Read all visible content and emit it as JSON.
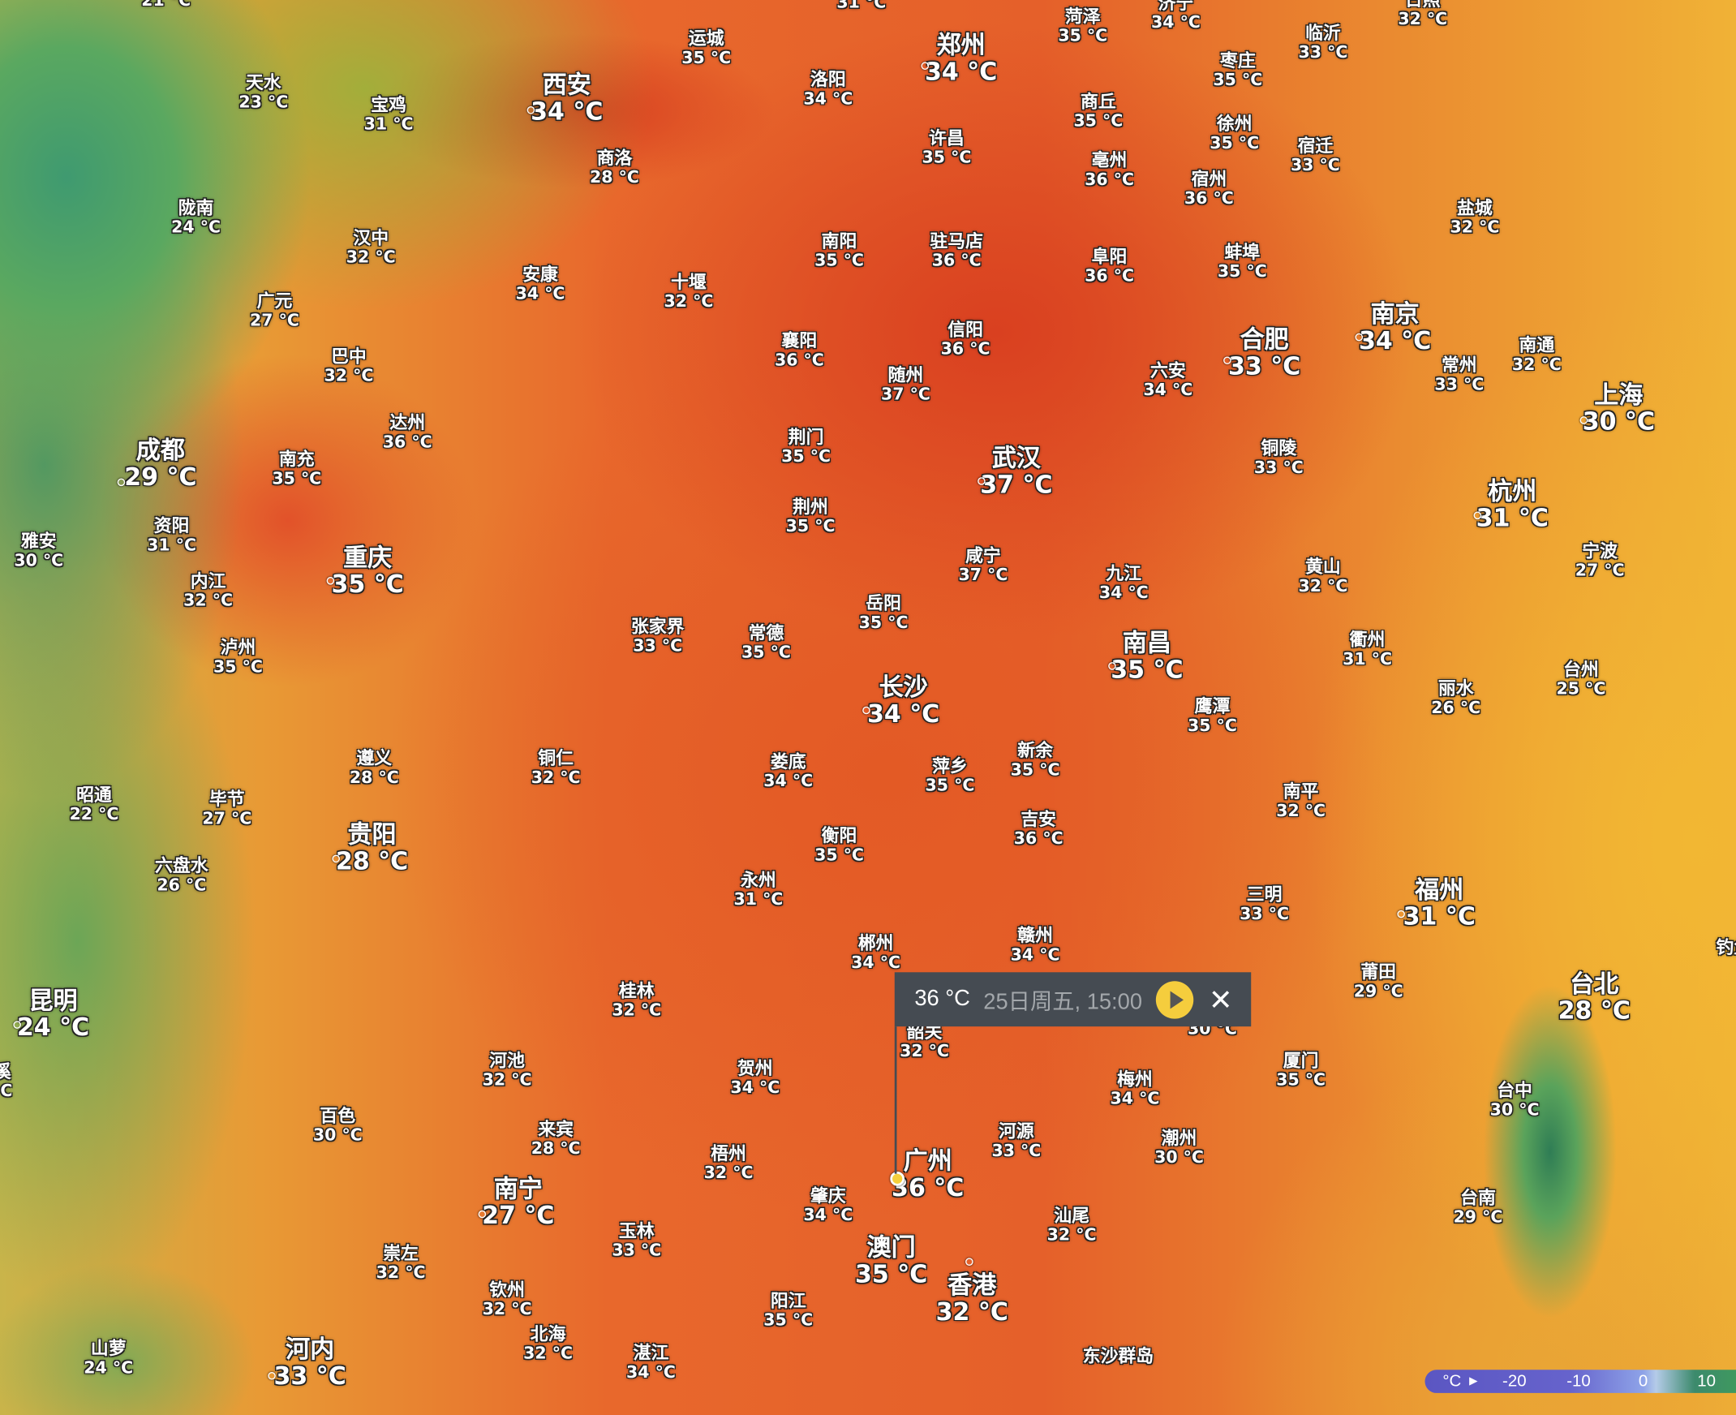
{
  "map": {
    "layer": "temperature",
    "unit": "°C"
  },
  "cities": [
    {
      "name": "",
      "temp": "21 °C"
    },
    {
      "name": "",
      "temp": "31 °C"
    },
    {
      "name": "天水",
      "temp": "23 °C"
    },
    {
      "name": "宝鸡",
      "temp": "31 °C"
    },
    {
      "name": "西安",
      "temp": "34 °C"
    },
    {
      "name": "运城",
      "temp": "35 °C"
    },
    {
      "name": "商洛",
      "temp": "28 °C"
    },
    {
      "name": "洛阳",
      "temp": "34 °C"
    },
    {
      "name": "郑州",
      "temp": "34 °C"
    },
    {
      "name": "菏泽",
      "temp": "35 °C"
    },
    {
      "name": "济宁",
      "temp": "34 °C"
    },
    {
      "name": "临沂",
      "temp": "33 °C"
    },
    {
      "name": "日照",
      "temp": "32 °C"
    },
    {
      "name": "枣庄",
      "temp": "35 °C"
    },
    {
      "name": "商丘",
      "temp": "35 °C"
    },
    {
      "name": "许昌",
      "temp": "35 °C"
    },
    {
      "name": "徐州",
      "temp": "35 °C"
    },
    {
      "name": "宿迁",
      "temp": "33 °C"
    },
    {
      "name": "亳州",
      "temp": "36 °C"
    },
    {
      "name": "宿州",
      "temp": "36 °C"
    },
    {
      "name": "盐城",
      "temp": "32 °C"
    },
    {
      "name": "陇南",
      "temp": "24 °C"
    },
    {
      "name": "汉中",
      "temp": "32 °C"
    },
    {
      "name": "安康",
      "temp": "34 °C"
    },
    {
      "name": "十堰",
      "temp": "32 °C"
    },
    {
      "name": "南阳",
      "temp": "35 °C"
    },
    {
      "name": "驻马店",
      "temp": "36 °C"
    },
    {
      "name": "阜阳",
      "temp": "36 °C"
    },
    {
      "name": "蚌埠",
      "temp": "35 °C"
    },
    {
      "name": "南京",
      "temp": "34 °C"
    },
    {
      "name": "合肥",
      "temp": "33 °C"
    },
    {
      "name": "广元",
      "temp": "27 °C"
    },
    {
      "name": "巴中",
      "temp": "32 °C"
    },
    {
      "name": "襄阳",
      "temp": "36 °C"
    },
    {
      "name": "信阳",
      "temp": "36 °C"
    },
    {
      "name": "随州",
      "temp": "37 °C"
    },
    {
      "name": "六安",
      "temp": "34 °C"
    },
    {
      "name": "常州",
      "temp": "33 °C"
    },
    {
      "name": "南通",
      "temp": "32 °C"
    },
    {
      "name": "上海",
      "temp": "30 °C"
    },
    {
      "name": "达州",
      "temp": "36 °C"
    },
    {
      "name": "成都",
      "temp": "29 °C"
    },
    {
      "name": "南充",
      "temp": "35 °C"
    },
    {
      "name": "荆门",
      "temp": "35 °C"
    },
    {
      "name": "武汉",
      "temp": "37 °C"
    },
    {
      "name": "铜陵",
      "temp": "33 °C"
    },
    {
      "name": "杭州",
      "temp": "31 °C"
    },
    {
      "name": "荆州",
      "temp": "35 °C"
    },
    {
      "name": "雅安",
      "temp": "30 °C"
    },
    {
      "name": "资阳",
      "temp": "31 °C"
    },
    {
      "name": "重庆",
      "temp": "35 °C"
    },
    {
      "name": "内江",
      "temp": "32 °C"
    },
    {
      "name": "咸宁",
      "temp": "37 °C"
    },
    {
      "name": "九江",
      "temp": "34 °C"
    },
    {
      "name": "黄山",
      "temp": "32 °C"
    },
    {
      "name": "宁波",
      "temp": "27 °C"
    },
    {
      "name": "岳阳",
      "temp": "35 °C"
    },
    {
      "name": "张家界",
      "temp": "33 °C"
    },
    {
      "name": "常德",
      "temp": "35 °C"
    },
    {
      "name": "泸州",
      "temp": "35 °C"
    },
    {
      "name": "衢州",
      "temp": "31 °C"
    },
    {
      "name": "南昌",
      "temp": "35 °C"
    },
    {
      "name": "台州",
      "temp": "25 °C"
    },
    {
      "name": "长沙",
      "temp": "34 °C"
    },
    {
      "name": "丽水",
      "temp": "26 °C"
    },
    {
      "name": "鹰潭",
      "temp": "35 °C"
    },
    {
      "name": "新余",
      "temp": "35 °C"
    },
    {
      "name": "遵义",
      "temp": "28 °C"
    },
    {
      "name": "铜仁",
      "temp": "32 °C"
    },
    {
      "name": "娄底",
      "temp": "34 °C"
    },
    {
      "name": "萍乡",
      "temp": "35 °C"
    },
    {
      "name": "昭通",
      "temp": "22 °C"
    },
    {
      "name": "毕节",
      "temp": "27 °C"
    },
    {
      "name": "南平",
      "temp": "32 °C"
    },
    {
      "name": "吉安",
      "temp": "36 °C"
    },
    {
      "name": "贵阳",
      "temp": "28 °C"
    },
    {
      "name": "衡阳",
      "temp": "35 °C"
    },
    {
      "name": "六盘水",
      "temp": "26 °C"
    },
    {
      "name": "永州",
      "temp": "31 °C"
    },
    {
      "name": "三明",
      "temp": "33 °C"
    },
    {
      "name": "福州",
      "temp": "31 °C"
    },
    {
      "name": "郴州",
      "temp": "34 °C"
    },
    {
      "name": "赣州",
      "temp": "34 °C"
    },
    {
      "name": "钓鱼岛",
      "temp": ""
    },
    {
      "name": "莆田",
      "temp": "29 °C"
    },
    {
      "name": "台北",
      "temp": "28 °C"
    },
    {
      "name": "桂林",
      "temp": "32 °C"
    },
    {
      "name": "昆明",
      "temp": "24 °C"
    },
    {
      "name": "韶关",
      "temp": "32 °C"
    },
    {
      "name": "",
      "temp": "30 °C"
    },
    {
      "name": "河池",
      "temp": "32 °C"
    },
    {
      "name": "贺州",
      "temp": "34 °C"
    },
    {
      "name": "梅州",
      "temp": "34 °C"
    },
    {
      "name": "厦门",
      "temp": "35 °C"
    },
    {
      "name": "台中",
      "temp": "30 °C"
    },
    {
      "name": "溪",
      "temp": "°C"
    },
    {
      "name": "百色",
      "temp": "30 °C"
    },
    {
      "name": "来宾",
      "temp": "28 °C"
    },
    {
      "name": "河源",
      "temp": "33 °C"
    },
    {
      "name": "潮州",
      "temp": "30 °C"
    },
    {
      "name": "梧州",
      "temp": "32 °C"
    },
    {
      "name": "广州",
      "temp": "36 °C"
    },
    {
      "name": "南宁",
      "temp": "27 °C"
    },
    {
      "name": "肇庆",
      "temp": "34 °C"
    },
    {
      "name": "台南",
      "temp": "29 °C"
    },
    {
      "name": "汕尾",
      "temp": "32 °C"
    },
    {
      "name": "玉林",
      "temp": "33 °C"
    },
    {
      "name": "澳门",
      "temp": "35 °C"
    },
    {
      "name": "崇左",
      "temp": "32 °C"
    },
    {
      "name": "香港",
      "temp": "32 °C"
    },
    {
      "name": "钦州",
      "temp": "32 °C"
    },
    {
      "name": "阳江",
      "temp": "35 °C"
    },
    {
      "name": "北海",
      "temp": "32 °C"
    },
    {
      "name": "湛江",
      "temp": "34 °C"
    },
    {
      "name": "山萝",
      "temp": "24 °C"
    },
    {
      "name": "河内",
      "temp": "33 °C"
    },
    {
      "name": "东沙群岛",
      "temp": ""
    }
  ],
  "popup": {
    "temp": "36 °C",
    "datetime": "25日周五, 15:00",
    "play_icon": "play-icon",
    "close_icon": "close-icon"
  },
  "legend": {
    "unit": "°C",
    "ticks": [
      "-20",
      "-10",
      "0",
      "10"
    ],
    "colors": [
      "#5b56c2",
      "#8ea3e8",
      "#3c8a6c",
      "#3f9c5c"
    ]
  }
}
